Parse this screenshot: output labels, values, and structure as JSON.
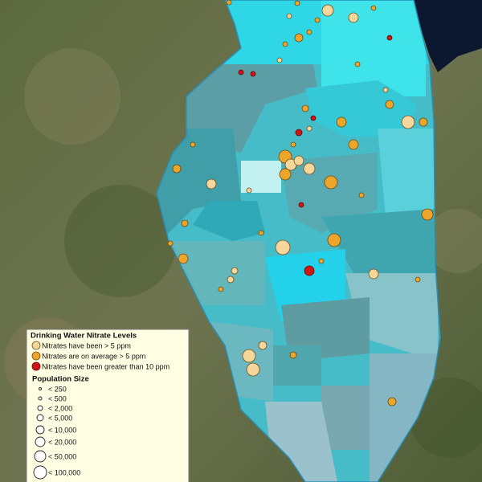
{
  "legend": {
    "title": "Drinking Water Nitrate Levels",
    "items": [
      {
        "label": "Nitrates have been > 5 ppm"
      },
      {
        "label": "Nitrates are on average > 5 ppm"
      },
      {
        "label": "Nitrates have been greater than 10 ppm"
      }
    ],
    "size_title": "Population Size",
    "sizes": [
      "< 250",
      "< 500",
      "< 2,000",
      "< 5,000",
      "< 10,000",
      "< 20,000",
      "< 50,000",
      "< 100,000"
    ]
  }
}
